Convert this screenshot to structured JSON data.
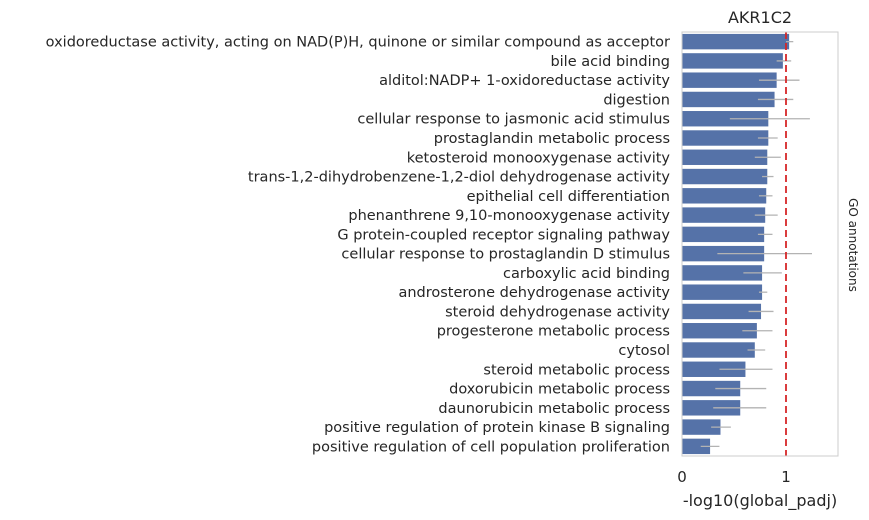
{
  "chart_data": {
    "type": "bar",
    "orientation": "horizontal",
    "title": "AKR1C2",
    "xlabel": "-log10(global_padj)",
    "ylabel": "",
    "side_label": "GO annotations",
    "xlim": [
      0,
      1.5
    ],
    "xticks": [
      0,
      1
    ],
    "reference_line": 1,
    "colors": {
      "bar": "#5572a8",
      "error": "#b3b3b3",
      "reference": "#d62728",
      "frame": "#cccccc"
    },
    "categories": [
      "oxidoreductase activity, acting on NAD(P)H, quinone or similar compound as acceptor",
      "bile acid binding",
      "alditol:NADP+ 1-oxidoreductase activity",
      "digestion",
      "cellular response to jasmonic acid stimulus",
      "prostaglandin metabolic process",
      "ketosteroid monooxygenase activity",
      "trans-1,2-dihydrobenzene-1,2-diol dehydrogenase activity",
      "epithelial cell differentiation",
      "phenanthrene 9,10-monooxygenase activity",
      "G protein-coupled receptor signaling pathway",
      "cellular response to prostaglandin D stimulus",
      "carboxylic acid binding",
      "androsterone dehydrogenase activity",
      "steroid dehydrogenase activity",
      "progesterone metabolic process",
      "cytosol",
      "steroid metabolic process",
      "doxorubicin metabolic process",
      "daunorubicin metabolic process",
      "positive regulation of protein kinase B signaling",
      "positive regulation of cell population proliferation"
    ],
    "values": [
      1.03,
      0.97,
      0.91,
      0.89,
      0.83,
      0.83,
      0.82,
      0.82,
      0.81,
      0.8,
      0.79,
      0.79,
      0.77,
      0.77,
      0.76,
      0.72,
      0.7,
      0.61,
      0.56,
      0.56,
      0.37,
      0.27
    ],
    "error_low": [
      1.0,
      0.91,
      0.74,
      0.73,
      0.46,
      0.73,
      0.7,
      0.77,
      0.74,
      0.7,
      0.73,
      0.34,
      0.59,
      0.74,
      0.64,
      0.58,
      0.63,
      0.36,
      0.32,
      0.3,
      0.28,
      0.18
    ],
    "error_high": [
      1.07,
      1.05,
      1.13,
      1.07,
      1.23,
      0.92,
      0.95,
      0.88,
      0.87,
      0.92,
      0.87,
      1.25,
      0.96,
      0.82,
      0.88,
      0.87,
      0.8,
      0.87,
      0.81,
      0.81,
      0.47,
      0.36
    ]
  }
}
